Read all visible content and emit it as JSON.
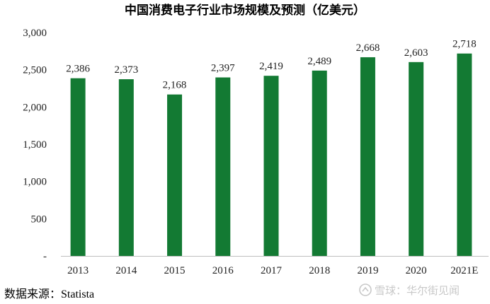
{
  "chart_data": {
    "type": "bar",
    "title": "中国消费电子行业市场规模及预测（亿美元）",
    "categories": [
      "2013",
      "2014",
      "2015",
      "2016",
      "2017",
      "2018",
      "2019",
      "2020",
      "2021E"
    ],
    "values": [
      2386,
      2373,
      2168,
      2397,
      2419,
      2489,
      2668,
      2603,
      2718
    ],
    "value_labels": [
      "2,386",
      "2,373",
      "2,168",
      "2,397",
      "2,419",
      "2,489",
      "2,668",
      "2,603",
      "2,718"
    ],
    "ylim": [
      0,
      3000
    ],
    "yticks": [
      0,
      500,
      1000,
      1500,
      2000,
      2500,
      3000
    ],
    "ytick_labels": [
      "-",
      "500",
      "1,000",
      "1,500",
      "2,000",
      "2,500",
      "3,000"
    ],
    "grid": false,
    "legend": "none",
    "bar_color": "#137a33"
  },
  "source": "数据来源：Statista",
  "watermark": "雪球：华尔街见闻"
}
